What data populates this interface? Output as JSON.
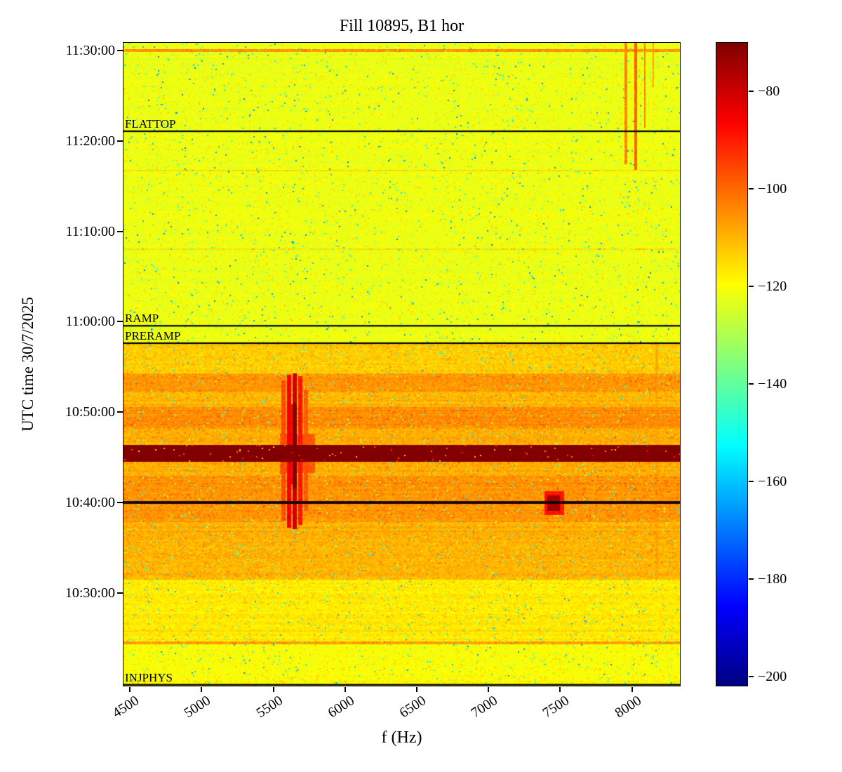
{
  "title": "Fill 10895, B1 hor",
  "axes": {
    "xlabel": "f (Hz)",
    "ylabel": "UTC time 30/7/2025"
  },
  "chart_data": {
    "type": "heatmap",
    "description": "Spectrogram (jet colormap) of B1 horizontal spectrum vs UTC time during LHC fill 10895, power in dB. Quiet yellow-green background after ramp; orange active injection region below PRERAMP with dark-red saturation stripe near 10:45, dark vertical resonance lines near 5600-5700 Hz, a dark spot near 7450 Hz at 10:40, and orange vertical lines near 8000-8100 Hz after FLATTOP.",
    "x_range": [
      4450,
      8340
    ],
    "time_top": 690.93,
    "time_bottom": 619.67,
    "x_ticks": [
      {
        "value": 4500,
        "label": "4500"
      },
      {
        "value": 5000,
        "label": "5000"
      },
      {
        "value": 5500,
        "label": "5500"
      },
      {
        "value": 6000,
        "label": "6000"
      },
      {
        "value": 6500,
        "label": "6500"
      },
      {
        "value": 7000,
        "label": "7000"
      },
      {
        "value": 7500,
        "label": "7500"
      },
      {
        "value": 8000,
        "label": "8000"
      }
    ],
    "y_ticks": [
      {
        "time": 690,
        "label": "11:30:00"
      },
      {
        "time": 680,
        "label": "11:20:00"
      },
      {
        "time": 670,
        "label": "11:10:00"
      },
      {
        "time": 660,
        "label": "11:00:00"
      },
      {
        "time": 650,
        "label": "10:50:00"
      },
      {
        "time": 640,
        "label": "10:40:00"
      },
      {
        "time": 630,
        "label": "10:30:00"
      }
    ],
    "colorbar": {
      "vmin": -202,
      "vmax": -70,
      "ticks": [
        {
          "value": -80,
          "label": "−80"
        },
        {
          "value": -100,
          "label": "−100"
        },
        {
          "value": -120,
          "label": "−120"
        },
        {
          "value": -140,
          "label": "−140"
        },
        {
          "value": -160,
          "label": "−160"
        },
        {
          "value": -180,
          "label": "−180"
        },
        {
          "value": -200,
          "label": "−200"
        }
      ]
    },
    "background_db": -122,
    "noise": {
      "seed": 987654,
      "sigma_quiet": 2.8,
      "sigma_active": 3.6,
      "row_sigma": 1.1,
      "speckle_prob": 0.016,
      "warm_prob": 0.05
    },
    "bands": [
      {
        "t0": 619.67,
        "t1": 624.5,
        "db": -120
      },
      {
        "t0": 624.5,
        "t1": 631.5,
        "db": -117
      },
      {
        "t0": 631.5,
        "t1": 637.8,
        "db": -110
      },
      {
        "t0": 637.8,
        "t1": 643.0,
        "db": -106
      },
      {
        "t0": 643.0,
        "t1": 644.5,
        "db": -109
      },
      {
        "t0": 644.5,
        "t1": 646.33,
        "db": -68
      },
      {
        "t0": 646.33,
        "t1": 648.3,
        "db": -109
      },
      {
        "t0": 648.3,
        "t1": 650.6,
        "db": -105
      },
      {
        "t0": 650.6,
        "t1": 652.3,
        "db": -110
      },
      {
        "t0": 652.3,
        "t1": 654.3,
        "db": -106
      },
      {
        "t0": 654.3,
        "t1": 657.63,
        "db": -113
      }
    ],
    "hlines": [
      {
        "t": 690.05,
        "db": -106,
        "hw": 0.13
      },
      {
        "t": 676.7,
        "db": -115,
        "hw": 0.1
      },
      {
        "t": 668.0,
        "db": -116,
        "hw": 0.1
      },
      {
        "t": 624.5,
        "db": -107,
        "hw": 0.13
      }
    ],
    "black_lines": [
      {
        "t": 640.0,
        "hw": 0.18
      }
    ],
    "vstreaks": [
      {
        "f": 5565,
        "hw": 15,
        "t0": 638.0,
        "t1": 653.5,
        "db": -96
      },
      {
        "f": 5610,
        "hw": 14,
        "t0": 637.2,
        "t1": 654.2,
        "db": -85
      },
      {
        "f": 5645,
        "hw": 16,
        "t0": 637.0,
        "t1": 654.3,
        "db": -80
      },
      {
        "f": 5685,
        "hw": 14,
        "t0": 637.5,
        "t1": 654.0,
        "db": -89
      },
      {
        "f": 5725,
        "hw": 12,
        "t0": 639.0,
        "t1": 652.5,
        "db": -98
      },
      {
        "f": 5630,
        "hw": 34,
        "t0": 642.0,
        "t1": 650.8,
        "db": -88
      },
      {
        "f": 5645,
        "hw": 13,
        "t0": 641.5,
        "t1": 651.0,
        "db": -70
      },
      {
        "f": 7960,
        "hw": 9,
        "t0": 677.5,
        "t1": 690.93,
        "db": -104
      },
      {
        "f": 8030,
        "hw": 11,
        "t0": 676.8,
        "t1": 690.93,
        "db": -99
      },
      {
        "f": 8090,
        "hw": 9,
        "t0": 681.5,
        "t1": 690.93,
        "db": -103
      },
      {
        "f": 8150,
        "hw": 6,
        "t0": 686.0,
        "t1": 690.93,
        "db": -108
      },
      {
        "f": 8170,
        "hw": 10,
        "t0": 631.5,
        "t1": 657.6,
        "db": -108
      }
    ],
    "blobs": [
      {
        "f0": 5540,
        "f1": 5790,
        "t0": 643.3,
        "t1": 647.6,
        "db": -98
      },
      {
        "f0": 7390,
        "f1": 7525,
        "t0": 638.6,
        "t1": 641.2,
        "db": -89
      },
      {
        "f0": 7410,
        "f1": 7495,
        "t0": 639.0,
        "t1": 640.8,
        "db": -75
      }
    ],
    "annotations": [
      {
        "label": "FLATTOP",
        "time": 681.07
      },
      {
        "label": "RAMP",
        "time": 659.55
      },
      {
        "label": "PRERAMP",
        "time": 657.63
      },
      {
        "label": "INJPHYS",
        "time": 619.85
      }
    ]
  }
}
